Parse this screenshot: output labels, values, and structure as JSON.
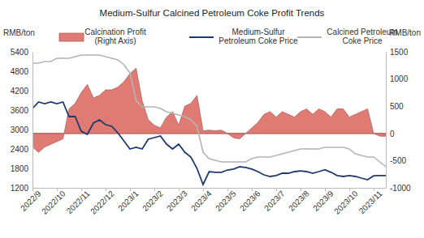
{
  "chart_data": {
    "type": "line",
    "title": "Medium-Sulfur Calcined Petroleum Coke Profit Trends",
    "ylabel": "RMB/ton",
    "y2label": "RMB/ton",
    "categories": [
      "2022/9",
      null,
      null,
      null,
      "2022/10",
      null,
      null,
      null,
      "2022/11",
      null,
      null,
      null,
      "2022/12",
      null,
      null,
      null,
      "2023/1",
      null,
      null,
      null,
      "2023/2",
      null,
      null,
      null,
      "2023/3",
      null,
      null,
      null,
      "2023/4",
      null,
      null,
      null,
      "2023/5",
      null,
      null,
      null,
      "2023/6",
      null,
      null,
      null,
      "2023/7",
      null,
      null,
      null,
      "2023/8",
      null,
      null,
      null,
      "2023/9",
      null,
      null,
      null,
      "2023/10",
      null,
      null,
      null,
      "2023/11",
      null,
      null
    ],
    "series": [
      {
        "name": "Calcination Profit\n(Right Axis)",
        "type": "area",
        "axis": "y2",
        "color": "#e07b73",
        "values": [
          -250,
          -350,
          -250,
          -200,
          -150,
          -100,
          450,
          550,
          750,
          900,
          650,
          700,
          800,
          800,
          850,
          950,
          1100,
          1200,
          600,
          250,
          150,
          100,
          300,
          400,
          150,
          500,
          550,
          700,
          50,
          60,
          50,
          60,
          0,
          -80,
          -100,
          0,
          100,
          200,
          350,
          400,
          300,
          400,
          350,
          300,
          400,
          450,
          350,
          450,
          400,
          300,
          450,
          450,
          300,
          350,
          400,
          450,
          0,
          -50,
          -50
        ]
      },
      {
        "name": "Medium-Sulfur\nPetroleum Coke Price",
        "type": "line",
        "color": "#1f3a6e",
        "values": [
          3650,
          3850,
          3800,
          3850,
          3800,
          3850,
          3400,
          3400,
          2950,
          2850,
          3200,
          3300,
          3150,
          3100,
          2900,
          2650,
          2400,
          2450,
          2400,
          2700,
          2750,
          2800,
          2550,
          2400,
          2550,
          2300,
          2150,
          1800,
          1300,
          1700,
          1680,
          1680,
          1750,
          1780,
          1850,
          1830,
          1780,
          1700,
          1600,
          1550,
          1580,
          1650,
          1650,
          1700,
          1720,
          1700,
          1650,
          1700,
          1760,
          1680,
          1580,
          1550,
          1580,
          1550,
          1500,
          1450,
          1570,
          1580,
          1580
        ]
      },
      {
        "name": "Calcined Petroleum\nCoke Price",
        "type": "line",
        "color": "#b4b4b4",
        "values": [
          5050,
          5050,
          5100,
          5100,
          5200,
          5200,
          5200,
          5250,
          5300,
          5300,
          5300,
          5300,
          5250,
          5200,
          5150,
          5000,
          4750,
          3900,
          3700,
          3700,
          3700,
          3650,
          3550,
          3500,
          3450,
          3400,
          3300,
          3100,
          2300,
          2100,
          2050,
          2000,
          2000,
          2000,
          2000,
          2000,
          2100,
          2150,
          2150,
          2150,
          2200,
          2250,
          2300,
          2350,
          2400,
          2400,
          2400,
          2400,
          2450,
          2450,
          2450,
          2450,
          2400,
          2250,
          2200,
          2150,
          2150,
          2000,
          1850
        ]
      }
    ],
    "ylim": [
      1200,
      5400
    ],
    "yticks": [
      1200,
      1800,
      2400,
      3000,
      3600,
      4200,
      4800,
      5400
    ],
    "y2lim": [
      -1000,
      1500
    ],
    "y2ticks": [
      -1000,
      -500,
      0,
      500,
      1000,
      1500
    ],
    "grid": false,
    "legend": "top"
  }
}
